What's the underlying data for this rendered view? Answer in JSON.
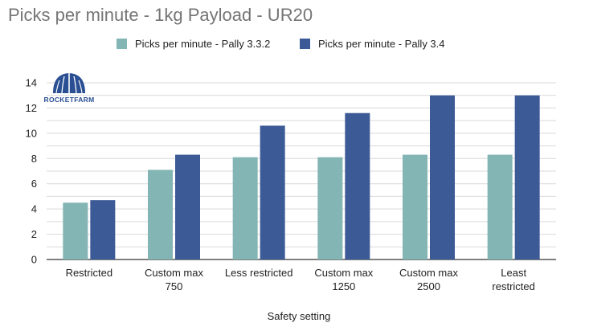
{
  "chart_data": {
    "type": "bar",
    "title": "Picks per minute - 1kg Payload - UR20",
    "xlabel": "Safety setting",
    "ylabel": "",
    "ylim": [
      0,
      14
    ],
    "yticks": [
      0,
      2,
      4,
      6,
      8,
      10,
      12,
      14
    ],
    "grid": true,
    "legend_position": "top",
    "categories": [
      [
        "Restricted"
      ],
      [
        "Custom max",
        "750"
      ],
      [
        "Less restricted"
      ],
      [
        "Custom max",
        "1250"
      ],
      [
        "Custom max",
        "2500"
      ],
      [
        "Least",
        "restricted"
      ]
    ],
    "series": [
      {
        "name": "Picks per minute - Pally 3.3.2",
        "color": "#82b5b3",
        "values": [
          4.5,
          7.1,
          8.1,
          8.1,
          8.3,
          8.3
        ]
      },
      {
        "name": "Picks per minute - Pally 3.4",
        "color": "#3c5a96",
        "values": [
          4.7,
          8.3,
          10.6,
          11.6,
          13.0,
          13.0
        ]
      }
    ]
  },
  "logo": {
    "text": "ROCKETFARM",
    "icon": "rocketfarm-logo-icon"
  }
}
